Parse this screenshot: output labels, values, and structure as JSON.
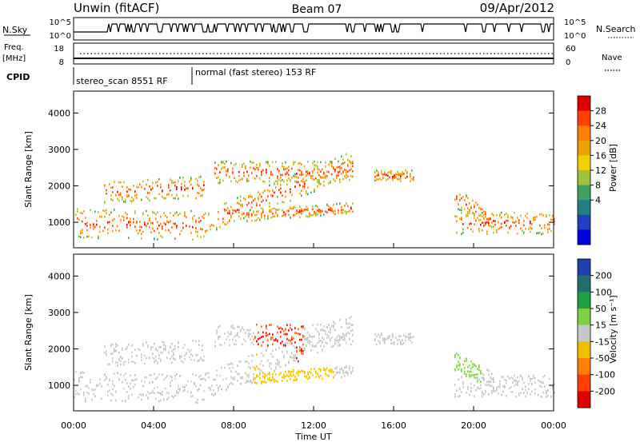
{
  "header": {
    "title_left": "Unwin (fitACF)",
    "title_center": "Beam 07",
    "title_right": "09/Apr/2012"
  },
  "top_panels": {
    "nsky_label": "N.Sky",
    "nsky_ticks": [
      "10^5",
      "10^0"
    ],
    "nsearch_label": "N.Search",
    "freq_label": "Freq.",
    "freq_unit": "[MHz]",
    "freq_ticks": [
      "18",
      "8"
    ],
    "nave_label": "Nave",
    "nave_ticks": [
      "60",
      "0"
    ],
    "cpid_label": "CPID",
    "cpid_segments": [
      {
        "label": "stereo_scan 8551 RF",
        "start_hour": 0,
        "end_hour": 6
      },
      {
        "label": "normal (fast stereo) 153 RF",
        "start_hour": 6,
        "end_hour": 24
      }
    ]
  },
  "chart_data": [
    {
      "type": "heatmap",
      "name": "power-panel",
      "ylabel": "Slant Range [km]",
      "xlabel": "",
      "yticks": [
        1000,
        2000,
        3000,
        4000
      ],
      "ylim": [
        300,
        4600
      ],
      "xlim": [
        0,
        24
      ],
      "colorbar": {
        "label": "Power [dB]",
        "ticks": [
          "28",
          "24",
          "20",
          "16",
          "12",
          "8",
          "4"
        ],
        "colors": [
          "#e00000",
          "#ff4000",
          "#ff8000",
          "#f0a000",
          "#f0d000",
          "#a0c040",
          "#40a060",
          "#208080",
          "#2040c0",
          "#0000e0"
        ]
      }
    },
    {
      "type": "heatmap",
      "name": "velocity-panel",
      "ylabel": "Slant Range [km]",
      "xlabel": "Time UT",
      "yticks": [
        1000,
        2000,
        3000,
        4000
      ],
      "ylim": [
        300,
        4600
      ],
      "xlim": [
        0,
        24
      ],
      "xticks": [
        "00:00",
        "04:00",
        "08:00",
        "12:00",
        "16:00",
        "20:00",
        "00:00"
      ],
      "colorbar": {
        "label": "Velocity [m s⁻¹]",
        "ticks": [
          "200",
          "100",
          "50",
          "15",
          "-15",
          "-50",
          "-100",
          "-200"
        ],
        "colors": [
          "#2040b0",
          "#207070",
          "#20a040",
          "#80d040",
          "#c8c8c8",
          "#f0c000",
          "#ff8000",
          "#ff4000",
          "#e00000"
        ]
      }
    }
  ]
}
